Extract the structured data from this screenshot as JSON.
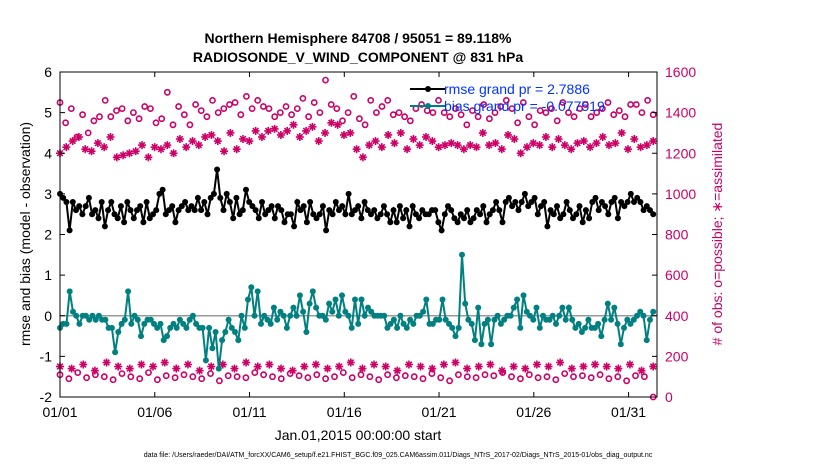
{
  "chart_data": {
    "type": "line",
    "title_line1": "Northern Hemisphere 84708 / 95051 = 89.118%",
    "title_line2": "RADIOSONDE_V_WIND_COMPONENT @ 831 hPa",
    "xlabel": "Jan.01,2015 00:00:00 start",
    "ylabel_left": "rmse and bias (model - observation)",
    "ylabel_right": "# of obs: o=possible; ∗=assimilated",
    "footer": "data file: /Users/raeder/DAI/ATM_forcXX/CAM6_setup/f.e21.FHIST_BGC.f09_025.CAM6assim.011/Diags_NTrS_2017-02/Diags_NTrS_2015-01/obs_diag_output.nc",
    "x_ticks": [
      "01/01",
      "01/06",
      "01/11",
      "01/16",
      "01/21",
      "01/26",
      "01/31"
    ],
    "x_tick_days": [
      0,
      5,
      10,
      15,
      20,
      25,
      30
    ],
    "xlim": [
      0,
      31.5
    ],
    "ylim_left": [
      -2,
      6
    ],
    "ylim_right": [
      0,
      1600
    ],
    "y_ticks_left": [
      "-2",
      "-1",
      "0",
      "1",
      "2",
      "3",
      "4",
      "5",
      "6"
    ],
    "y_ticks_right": [
      "0",
      "200",
      "400",
      "600",
      "800",
      "1000",
      "1200",
      "1400",
      "1600"
    ],
    "colors": {
      "rmse": "#000000",
      "bias": "#008080",
      "obs": "#CC0066",
      "legend_text": "#0033FF"
    },
    "legend": {
      "placement": "top-right",
      "rmse_label": "rmse grand pr = 2.7886",
      "bias_label": "bias grand pr = -0.077519"
    },
    "step_days": 0.25,
    "series": [
      {
        "name": "rmse",
        "axis": "left",
        "values": [
          3.0,
          2.9,
          2.8,
          2.1,
          2.8,
          2.6,
          2.7,
          2.5,
          2.7,
          2.9,
          2.5,
          2.6,
          2.4,
          2.8,
          2.2,
          2.6,
          2.8,
          2.5,
          2.4,
          2.7,
          2.3,
          2.8,
          2.6,
          2.4,
          2.6,
          2.7,
          2.3,
          2.8,
          2.4,
          2.5,
          2.6,
          3.0,
          3.1,
          2.5,
          2.6,
          2.7,
          2.3,
          2.6,
          2.7,
          2.8,
          2.6,
          2.7,
          2.6,
          2.9,
          2.6,
          2.8,
          2.5,
          2.9,
          3.0,
          3.6,
          2.9,
          2.6,
          3.0,
          2.8,
          2.4,
          2.9,
          2.5,
          2.6,
          3.1,
          2.8,
          2.7,
          2.6,
          2.4,
          2.8,
          2.5,
          2.6,
          2.7,
          2.4,
          2.7,
          2.6,
          2.3,
          2.5,
          2.5,
          2.2,
          2.8,
          2.6,
          2.7,
          2.3,
          2.8,
          2.5,
          2.4,
          2.5,
          2.7,
          2.1,
          2.6,
          2.5,
          2.8,
          2.6,
          2.7,
          2.5,
          3.0,
          2.5,
          2.6,
          2.7,
          2.4,
          2.8,
          2.6,
          2.5,
          2.6,
          2.4,
          2.5,
          2.7,
          2.5,
          2.3,
          2.6,
          2.3,
          2.7,
          2.4,
          2.6,
          2.2,
          2.7,
          2.5,
          2.4,
          2.6,
          2.5,
          2.5,
          2.6,
          2.6,
          2.3,
          2.1,
          2.5,
          2.7,
          2.6,
          2.4,
          2.3,
          2.5,
          2.4,
          2.6,
          2.3,
          2.4,
          2.6,
          2.5,
          2.7,
          2.3,
          2.5,
          2.6,
          2.8,
          2.6,
          2.3,
          2.8,
          2.9,
          2.7,
          2.8,
          2.6,
          2.8,
          3.0,
          2.7,
          2.8,
          2.9,
          2.5,
          2.7,
          2.8,
          2.2,
          2.6,
          2.5,
          2.7,
          2.4,
          2.5,
          2.8,
          2.6,
          2.4,
          2.5,
          2.7,
          2.3,
          2.6,
          2.4,
          2.8,
          2.9,
          2.6,
          2.8,
          2.7,
          2.5,
          2.8,
          2.9,
          2.4,
          2.8,
          2.7,
          2.8,
          3.0,
          2.8,
          2.9,
          2.8,
          2.6,
          2.7,
          2.6,
          2.5
        ]
      },
      {
        "name": "bias",
        "axis": "left",
        "values": [
          -0.3,
          -0.2,
          -0.2,
          0.6,
          0.1,
          0.0,
          -0.2,
          0.0,
          0.0,
          -0.1,
          0.0,
          -0.1,
          0.0,
          -0.1,
          -0.1,
          -0.3,
          -0.3,
          -0.9,
          -0.4,
          -0.2,
          -0.1,
          0.6,
          -0.2,
          0.0,
          -0.1,
          -0.5,
          -0.2,
          -0.1,
          -0.1,
          -0.2,
          -0.3,
          -0.2,
          -0.6,
          -0.5,
          -0.3,
          -0.2,
          -0.3,
          -0.1,
          -0.2,
          -0.3,
          -0.1,
          0.0,
          -0.2,
          -0.3,
          -0.3,
          -1.1,
          -0.3,
          -0.8,
          -0.4,
          -1.3,
          -0.6,
          -0.4,
          -0.1,
          -0.3,
          -0.4,
          -0.6,
          0.0,
          -0.3,
          0.4,
          0.7,
          0.0,
          0.6,
          -0.2,
          0.0,
          -0.1,
          -0.2,
          0.2,
          -0.1,
          0.1,
          0.0,
          -0.3,
          0.0,
          0.2,
          0.0,
          0.5,
          0.1,
          -0.4,
          0.3,
          0.6,
          0.2,
          0.0,
          0.0,
          -0.1,
          0.3,
          0.1,
          0.4,
          0.0,
          0.5,
          0.1,
          0.0,
          -0.3,
          0.4,
          -0.2,
          0.4,
          0.0,
          0.2,
          0.1,
          0.0,
          0.0,
          0.0,
          0.0,
          -0.3,
          -0.2,
          -0.1,
          -0.3,
          0.0,
          -0.2,
          -0.3,
          -0.1,
          -0.2,
          0.0,
          0.0,
          0.1,
          0.4,
          -0.2,
          -0.2,
          -0.1,
          -0.1,
          0.4,
          -0.1,
          -0.2,
          -0.3,
          -0.5,
          -0.3,
          1.5,
          0.3,
          -0.1,
          -0.2,
          -0.6,
          0.2,
          -0.7,
          -0.2,
          -0.1,
          -0.7,
          -0.1,
          0.0,
          -0.2,
          -0.1,
          0.0,
          0.0,
          0.2,
          0.4,
          -0.3,
          0.5,
          0.1,
          0.0,
          -0.1,
          0.2,
          -0.3,
          0.0,
          -0.1,
          -0.1,
          0.0,
          -0.2,
          0.0,
          0.2,
          -0.1,
          0.2,
          -0.1,
          -0.3,
          -0.2,
          -0.4,
          -0.3,
          -0.1,
          -0.3,
          -0.3,
          -0.2,
          -0.5,
          -0.1,
          0.3,
          -0.1,
          0.2,
          -0.2,
          -0.7,
          -0.3,
          -0.1,
          -0.2,
          -0.1,
          0.0,
          0.1,
          0.0,
          -0.6,
          -0.1,
          0.1
        ]
      },
      {
        "name": "possible",
        "axis": "right",
        "marker": "o",
        "values": [
          1450,
          1350,
          1420,
          1280,
          1390,
          1300,
          1360,
          1380,
          1460,
          1380,
          1410,
          1420,
          1360,
          1400,
          1370,
          1430,
          1420,
          1350,
          1370,
          1500,
          1340,
          1430,
          1390,
          1340,
          1440,
          1410,
          1380,
          1460,
          1400,
          1420,
          1440,
          1450,
          1390,
          1480,
          1420,
          1460,
          1430,
          1420,
          1380,
          1400,
          1430,
          1390,
          1420,
          1470,
          1380,
          1450,
          1400,
          1560,
          1440,
          1420,
          1360,
          1400,
          1480,
          1370,
          1340,
          1460,
          1400,
          1430,
          1460,
          1390,
          1400,
          1380,
          1360,
          1420,
          1440,
          1410,
          1400,
          1460,
          1400,
          1380,
          1420,
          1390,
          1340,
          1410,
          1380,
          1440,
          1370,
          1400,
          1430,
          1460,
          1420,
          1350,
          1450,
          1380,
          1340,
          1410,
          1400,
          1420,
          1360,
          1450,
          1400,
          1380,
          1420,
          1440,
          1380,
          1400,
          1420,
          1450,
          1390,
          1410,
          1380,
          1440,
          1440,
          1400,
          1460,
          1390
        ]
      },
      {
        "name": "assimilated",
        "axis": "right",
        "marker": "*",
        "values": [
          1200,
          1230,
          1260,
          1280,
          1220,
          1210,
          1250,
          1230,
          1280,
          1180,
          1190,
          1200,
          1210,
          1240,
          1180,
          1230,
          1220,
          1240,
          1200,
          1270,
          1230,
          1260,
          1240,
          1280,
          1290,
          1260,
          1210,
          1300,
          1220,
          1270,
          1260,
          1310,
          1280,
          1310,
          1320,
          1290,
          1310,
          1340,
          1280,
          1310,
          1330,
          1260,
          1300,
          1350,
          1340,
          1290,
          1300,
          1220,
          1180,
          1240,
          1260,
          1230,
          1290,
          1250,
          1300,
          1220,
          1270,
          1240,
          1280,
          1260,
          1230,
          1240,
          1250,
          1240,
          1220,
          1240,
          1230,
          1300,
          1240,
          1250,
          1220,
          1290,
          1270,
          1200,
          1230,
          1250,
          1240,
          1280,
          1230,
          1270,
          1240,
          1220,
          1250,
          1260,
          1230,
          1250,
          1280,
          1240,
          1250,
          1300,
          1220,
          1270,
          1230,
          1240,
          1260
        ]
      },
      {
        "name": "possible_low",
        "axis": "right",
        "marker": "o",
        "values": [
          110,
          90,
          120,
          95,
          110,
          100,
          85,
          115,
          100,
          90,
          120,
          85,
          105,
          95,
          110,
          100,
          90,
          115,
          80,
          105,
          100,
          95,
          120,
          110,
          100,
          90,
          115,
          105,
          95,
          110,
          90,
          100,
          120,
          95,
          110,
          100,
          85,
          110,
          95,
          105,
          100,
          90,
          115,
          95,
          80,
          110,
          100,
          95,
          110,
          105,
          120,
          100,
          90,
          110,
          95,
          100,
          85,
          115,
          100,
          105,
          95,
          110,
          90,
          100,
          80,
          105,
          100,
          0
        ]
      },
      {
        "name": "assimilated_low",
        "axis": "right",
        "marker": "*",
        "values": [
          150,
          140,
          160,
          130,
          170,
          150,
          140,
          160,
          150,
          170,
          140,
          160,
          130,
          150,
          160,
          140,
          170,
          150,
          160,
          140,
          130,
          150,
          160,
          140,
          150,
          170,
          140,
          160,
          150,
          130,
          160,
          150,
          140,
          160,
          170,
          140,
          150,
          160,
          130,
          150,
          140,
          160,
          150,
          170,
          140,
          150,
          160,
          150,
          140,
          160,
          130,
          150
        ]
      }
    ]
  }
}
